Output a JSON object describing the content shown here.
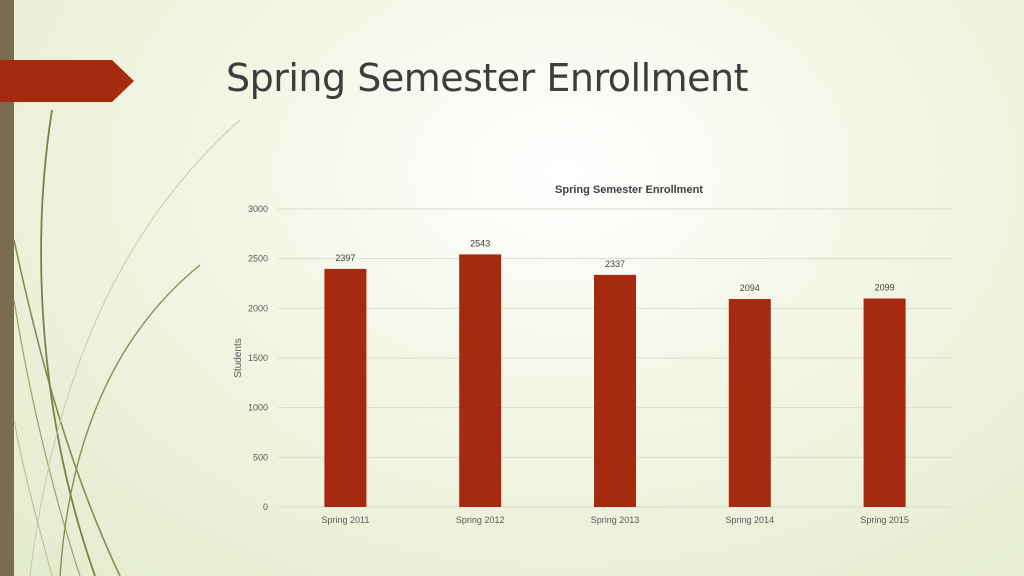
{
  "slide": {
    "title": "Spring Semester Enrollment"
  },
  "colors": {
    "accent": "#a52a10",
    "bar": "#a52a10",
    "sidebar": "#7a6d4f",
    "grid": "#d9dccc"
  },
  "chart_data": {
    "type": "bar",
    "title": "Spring Semester Enrollment",
    "xlabel": "",
    "ylabel": "Students",
    "categories": [
      "Spring 2011",
      "Spring 2012",
      "Spring 2013",
      "Spring 2014",
      "Spring 2015"
    ],
    "values": [
      2397,
      2543,
      2337,
      2094,
      2099
    ],
    "ylim": [
      0,
      3000
    ],
    "yticks": [
      0,
      500,
      1000,
      1500,
      2000,
      2500,
      3000
    ],
    "grid": true,
    "data_labels": true
  }
}
